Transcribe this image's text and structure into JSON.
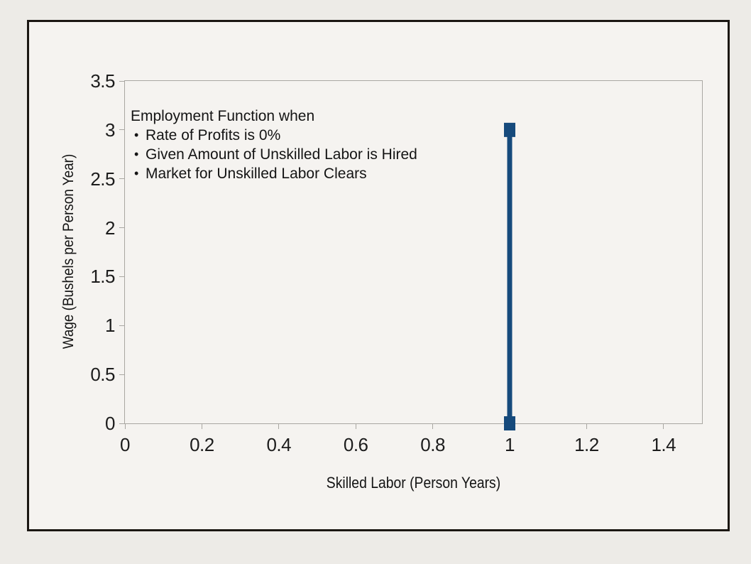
{
  "page": {
    "background_color": "#edebe7",
    "frame_background_color": "#f5f3f0",
    "frame_border_color": "#1b1713",
    "axis_color": "#a9a7a2",
    "text_color": "#141414"
  },
  "chart_data": {
    "type": "line",
    "title": "",
    "xlabel": "Skilled Labor (Person Years)",
    "ylabel": "Wage (Bushels per Person Year)",
    "xlim": [
      0,
      1.5
    ],
    "ylim": [
      0,
      3.5
    ],
    "grid": false,
    "legend": false,
    "x_ticks": [
      0,
      0.2,
      0.4,
      0.6,
      0.8,
      1,
      1.2,
      1.4
    ],
    "x_tick_labels": [
      "0",
      "0.2",
      "0.4",
      "0.6",
      "0.8",
      "1",
      "1.2",
      "1.4"
    ],
    "y_ticks": [
      0,
      0.5,
      1,
      1.5,
      2,
      2.5,
      3,
      3.5
    ],
    "y_tick_labels": [
      "0",
      "0.5",
      "1",
      "1.5",
      "2",
      "2.5",
      "3",
      "3.5"
    ],
    "series": [
      {
        "name": "employment-function",
        "color": "#164a7c",
        "line_width": 7,
        "marker": "square",
        "marker_width": 16,
        "marker_height": 20,
        "points": [
          [
            1,
            0
          ],
          [
            1,
            3
          ]
        ]
      }
    ],
    "annotation": {
      "title": "Employment Function when",
      "bullet_glyph": "•",
      "bullets": [
        "Rate of Profits is 0%",
        "Given Amount of Unskilled Labor is Hired",
        "Market for Unskilled Labor Clears"
      ]
    }
  }
}
